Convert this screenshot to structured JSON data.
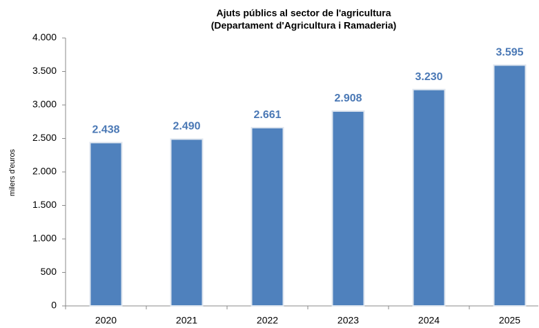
{
  "chart_data": {
    "type": "bar",
    "title": [
      "Ajuts públics al sector de l'agricultura",
      "(Departament d'Agricultura i Ramaderia)"
    ],
    "y_label": "milers d'euros",
    "categories": [
      "2020",
      "2021",
      "2022",
      "2023",
      "2024",
      "2025"
    ],
    "values": [
      2438,
      2490,
      2661,
      2908,
      3230,
      3595
    ],
    "value_labels": [
      "2.438",
      "2.490",
      "2.661",
      "2.908",
      "3.230",
      "3.595"
    ],
    "color": "#4f81bd",
    "label_color": "#4a78b5",
    "ylim": [
      0,
      4000
    ],
    "yticks": [
      0,
      500,
      {
        "value": 1000,
        "label": "1.000"
      },
      {
        "value": 1500,
        "label": "1.500"
      },
      {
        "value": 2000,
        "label": "2.000"
      },
      {
        "value": 2500,
        "label": "2.500"
      },
      {
        "value": 3000,
        "label": "3.000"
      },
      {
        "value": 3500,
        "label": "3.500"
      },
      {
        "value": 4000,
        "label": "4.000"
      }
    ],
    "grid": false
  }
}
